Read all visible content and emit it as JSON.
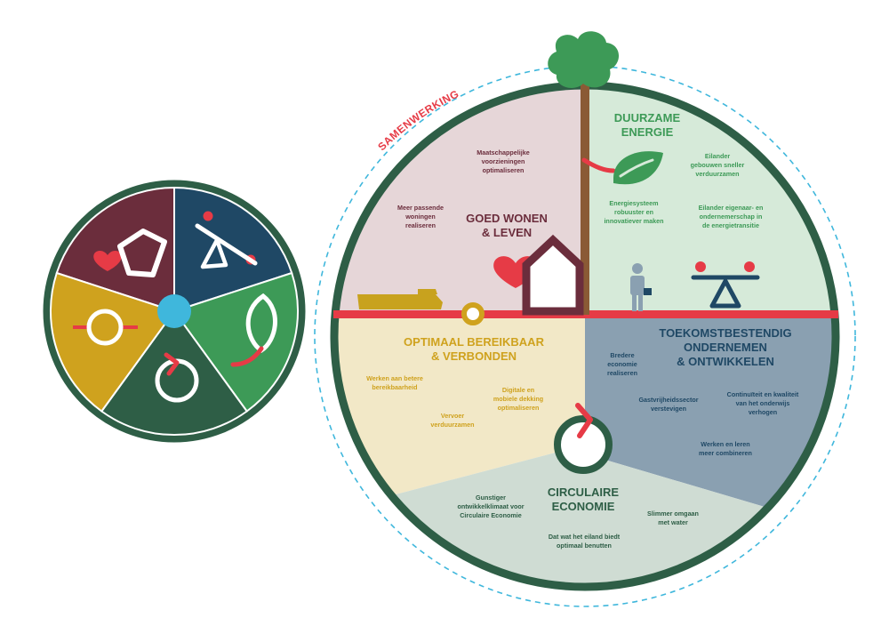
{
  "colors": {
    "wine": "#6b2d3c",
    "navy": "#1f4865",
    "green": "#3d9a57",
    "dark_green": "#2e5e46",
    "ochre": "#cfa21e",
    "cyan": "#3fb7dc",
    "red": "#e63b46",
    "goed_wonen_bg": "#e6d6d8",
    "duurzame_bg": "#d6ead9",
    "optimaal_bg": "#f2e8c7",
    "toekomst_bg": "#8aa0b1",
    "circulaire_bg": "#cfdcd3"
  },
  "samenwerking_label": "SAMENWERKING",
  "sections": {
    "goed_wonen": {
      "title_line1": "GOED WONEN",
      "title_line2": "& LEVEN",
      "items": [
        [
          "Maatschappelijke",
          "voorzieningen",
          "optimaliseren"
        ],
        [
          "Meer passende",
          "woningen",
          "realiseren"
        ]
      ]
    },
    "duurzame_energie": {
      "title_line1": "DUURZAME",
      "title_line2": "ENERGIE",
      "items": [
        [
          "Eilander",
          "gebouwen sneller",
          "verduurzamen"
        ],
        [
          "Energiesysteem",
          "robuuster en",
          "innovatiever maken"
        ],
        [
          "Eilander eigenaar- en",
          "ondernemerschap in",
          "de energietransitie"
        ]
      ]
    },
    "optimaal_bereikbaar": {
      "title_line1": "OPTIMAAL BEREIKBAAR",
      "title_line2": "& VERBONDEN",
      "items": [
        [
          "Werken aan betere",
          "bereikbaarheid"
        ],
        [
          "Digitale en",
          "mobiele dekking",
          "optimaliseren"
        ],
        [
          "Vervoer",
          "verduurzamen"
        ]
      ]
    },
    "toekomstbestendig": {
      "title_line1": "TOEKOMSTBESTENDIG",
      "title_line2": "ONDERNEMEN",
      "title_line3": "& ONTWIKKELEN",
      "items": [
        [
          "Bredere",
          "economie",
          "realiseren"
        ],
        [
          "Gastvrijheidssector",
          "verstevigen"
        ],
        [
          "Continuïteit en kwaliteit",
          "van het onderwijs",
          "verhogen"
        ],
        [
          "Werken en leren",
          "meer combineren"
        ]
      ]
    },
    "circulaire_economie": {
      "title_line1": "CIRCULAIRE",
      "title_line2": "ECONOMIE",
      "items": [
        [
          "Gunstiger",
          "ontwikkelklimaat voor",
          "Circulaire Economie"
        ],
        [
          "Slimmer omgaan",
          "met water"
        ],
        [
          "Dat wat het eiland biedt",
          "optimaal benutten"
        ]
      ]
    }
  },
  "icons": [
    "house-heart-icon",
    "seesaw-balance-icon",
    "leaf-icon",
    "circular-arrow-icon",
    "connection-ring-icon",
    "tree-icon",
    "ship-icon",
    "person-briefcase-icon"
  ]
}
